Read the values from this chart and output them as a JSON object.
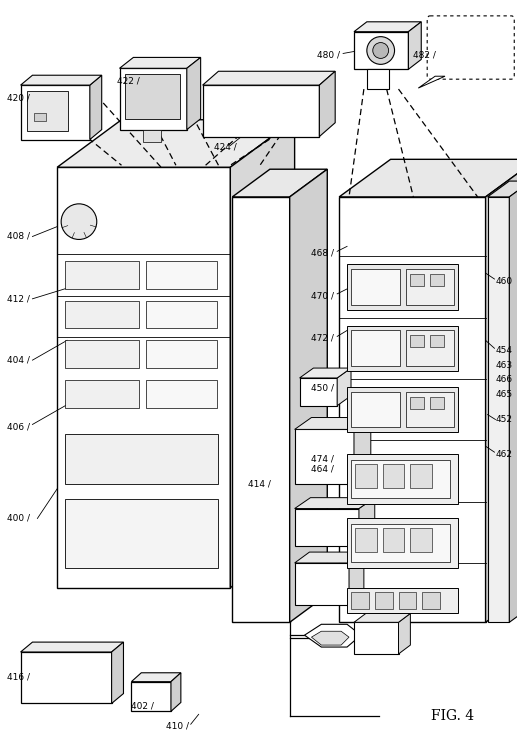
{
  "title": "FIG. 4",
  "background": "#ffffff",
  "fig_width": 5.2,
  "fig_height": 7.48,
  "dpi": 100
}
